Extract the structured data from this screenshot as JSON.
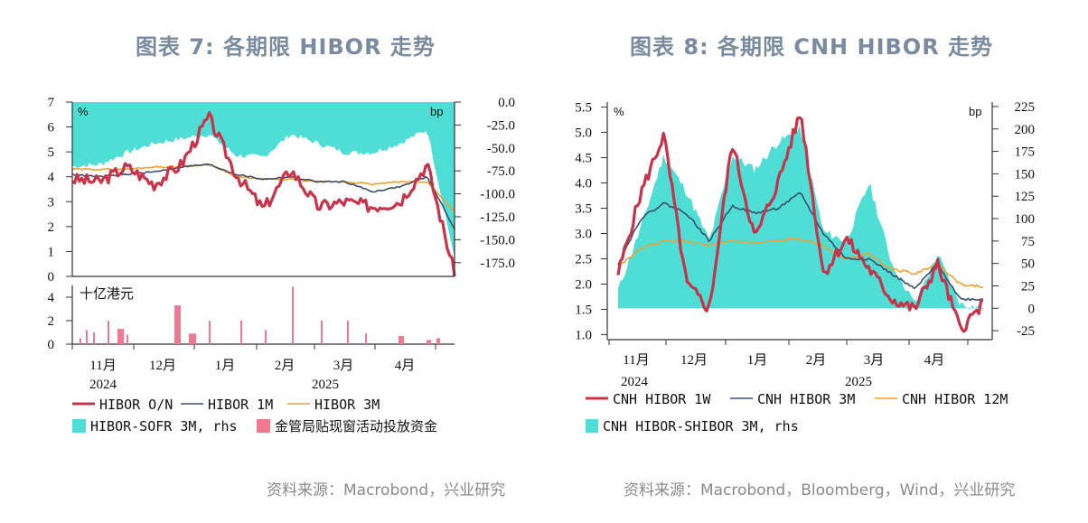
{
  "charts": [
    {
      "title": "图表 7:  各期限 HIBOR 走势",
      "source": "资料来源：Macrobond，兴业研究",
      "upper": {
        "left_unit": "%",
        "right_unit": "bp",
        "left_ticks": [
          "7",
          "6",
          "5",
          "4",
          "3",
          "2",
          "1",
          "0"
        ],
        "right_ticks": [
          "0.0",
          "-25.0",
          "-50.0",
          "-75.0",
          "-100.0",
          "-125.0",
          "-150.0",
          "-175.0"
        ]
      },
      "lower": {
        "unit": "十亿港元",
        "ticks": [
          "4",
          "2",
          "0"
        ]
      },
      "x_months": [
        "11月",
        "12月",
        "1月",
        "2月",
        "3月",
        "4月"
      ],
      "x_years": [
        "2024",
        "2025"
      ],
      "legend": [
        {
          "label": "HIBOR O/N",
          "type": "line",
          "color": "#c8334a"
        },
        {
          "label": "HIBOR 1M",
          "type": "line",
          "color": "#3d4e68"
        },
        {
          "label": "HIBOR 3M",
          "type": "line",
          "color": "#f0a030"
        },
        {
          "label": "HIBOR-SOFR 3M, rhs",
          "type": "area",
          "color": "#4fded6"
        },
        {
          "label": "金管局贴现窗活动投放资金",
          "type": "bar",
          "color": "#f07890"
        }
      ]
    },
    {
      "title": "图表 8:  各期限 CNH HIBOR 走势",
      "source": "资料来源：Macrobond，Bloomberg，Wind，兴业研究",
      "upper": {
        "left_unit": "%",
        "right_unit": "bp",
        "left_ticks": [
          "5.5",
          "5.0",
          "4.5",
          "4.0",
          "3.5",
          "3.0",
          "2.5",
          "2.0",
          "1.5",
          "1.0"
        ],
        "right_ticks": [
          "225",
          "200",
          "175",
          "150",
          "125",
          "100",
          "75",
          "50",
          "25",
          "0",
          "-25"
        ]
      },
      "x_months": [
        "11月",
        "12月",
        "1月",
        "2月",
        "3月",
        "4月"
      ],
      "x_years": [
        "2024",
        "2025"
      ],
      "legend": [
        {
          "label": "CNH HIBOR 1W",
          "type": "line",
          "color": "#c8334a"
        },
        {
          "label": "CNH HIBOR 3M",
          "type": "line",
          "color": "#3d4e68"
        },
        {
          "label": "CNH HIBOR 12M",
          "type": "line",
          "color": "#f0a030"
        },
        {
          "label": "CNH HIBOR-SHIBOR 3M, rhs",
          "type": "area",
          "color": "#4fded6"
        }
      ]
    }
  ],
  "chart_data": [
    {
      "type": "line",
      "title": "图表 7: 各期限 HIBOR 走势",
      "xlabel": "",
      "ylabel": "%",
      "y2label": "bp",
      "ylim": [
        0,
        7
      ],
      "y2lim": [
        -190,
        0
      ],
      "x": [
        "2024-10-15",
        "2024-11-01",
        "2024-11-15",
        "2024-12-01",
        "2024-12-15",
        "2025-01-01",
        "2025-01-15",
        "2025-02-01",
        "2025-02-15",
        "2025-03-01",
        "2025-03-15",
        "2025-04-01",
        "2025-04-15",
        "2025-04-28",
        "2025-05-02"
      ],
      "series": [
        {
          "name": "HIBOR O/N",
          "axis": "left",
          "values": [
            3.9,
            3.8,
            4.4,
            3.7,
            4.5,
            6.4,
            4.1,
            2.7,
            4.3,
            2.8,
            3.0,
            2.8,
            3.0,
            4.5,
            0.1
          ]
        },
        {
          "name": "HIBOR 1M",
          "axis": "left",
          "values": [
            4.1,
            4.0,
            4.1,
            4.2,
            4.4,
            4.5,
            4.1,
            3.9,
            4.0,
            3.8,
            3.8,
            3.4,
            3.6,
            4.0,
            1.9
          ]
        },
        {
          "name": "HIBOR 3M",
          "axis": "left",
          "values": [
            4.3,
            4.3,
            4.3,
            4.4,
            4.4,
            4.5,
            4.0,
            3.9,
            3.9,
            3.8,
            3.8,
            3.7,
            3.8,
            3.8,
            2.6
          ]
        },
        {
          "name": "HIBOR-SOFR 3M, rhs",
          "axis": "right",
          "type": "area",
          "values": [
            -70,
            -68,
            -55,
            -45,
            -40,
            -35,
            -58,
            -60,
            -35,
            -45,
            -55,
            -55,
            -45,
            -30,
            -170
          ]
        },
        {
          "name": "金管局贴现窗活动投放资金",
          "axis": "lower",
          "unit": "十亿港元",
          "type": "bar",
          "values": [
            0.4,
            1.0,
            2.0,
            1.3,
            3.3,
            1.0,
            2.0,
            2.0,
            1.5,
            5.0,
            2.0,
            2.0,
            0.8,
            0.7,
            0.5
          ]
        }
      ]
    },
    {
      "type": "line",
      "title": "图表 8: 各期限 CNH HIBOR 走势",
      "xlabel": "",
      "ylabel": "%",
      "y2label": "bp",
      "ylim": [
        0.9,
        5.6
      ],
      "y2lim": [
        -35,
        230
      ],
      "x": [
        "2024-10-15",
        "2024-11-01",
        "2024-11-10",
        "2024-11-20",
        "2024-12-01",
        "2024-12-10",
        "2024-12-20",
        "2025-01-01",
        "2025-01-10",
        "2025-01-20",
        "2025-02-01",
        "2025-02-15",
        "2025-03-01",
        "2025-03-15",
        "2025-04-01",
        "2025-04-15",
        "2025-05-01"
      ],
      "series": [
        {
          "name": "CNH HIBOR 1W",
          "axis": "left",
          "values": [
            2.2,
            3.8,
            4.95,
            2.0,
            1.5,
            4.8,
            2.9,
            4.0,
            5.4,
            2.2,
            2.9,
            2.3,
            1.7,
            1.5,
            2.4,
            1.1,
            1.6
          ]
        },
        {
          "name": "CNH HIBOR 3M",
          "axis": "left",
          "values": [
            2.4,
            3.3,
            3.6,
            3.4,
            2.85,
            3.55,
            3.4,
            3.5,
            3.8,
            3.0,
            2.5,
            2.5,
            2.2,
            1.9,
            2.4,
            1.7,
            1.7
          ]
        },
        {
          "name": "CNH HIBOR 12M",
          "axis": "left",
          "values": [
            2.35,
            2.7,
            2.85,
            2.85,
            2.75,
            2.85,
            2.8,
            2.85,
            2.9,
            2.75,
            2.5,
            2.6,
            2.3,
            2.2,
            2.4,
            2.0,
            1.95
          ]
        },
        {
          "name": "CNH HIBOR-SHIBOR 3M, rhs",
          "axis": "right",
          "type": "area",
          "values": [
            20,
            90,
            170,
            130,
            75,
            170,
            155,
            185,
            200,
            85,
            75,
            140,
            50,
            5,
            60,
            5,
            0
          ]
        }
      ]
    }
  ]
}
